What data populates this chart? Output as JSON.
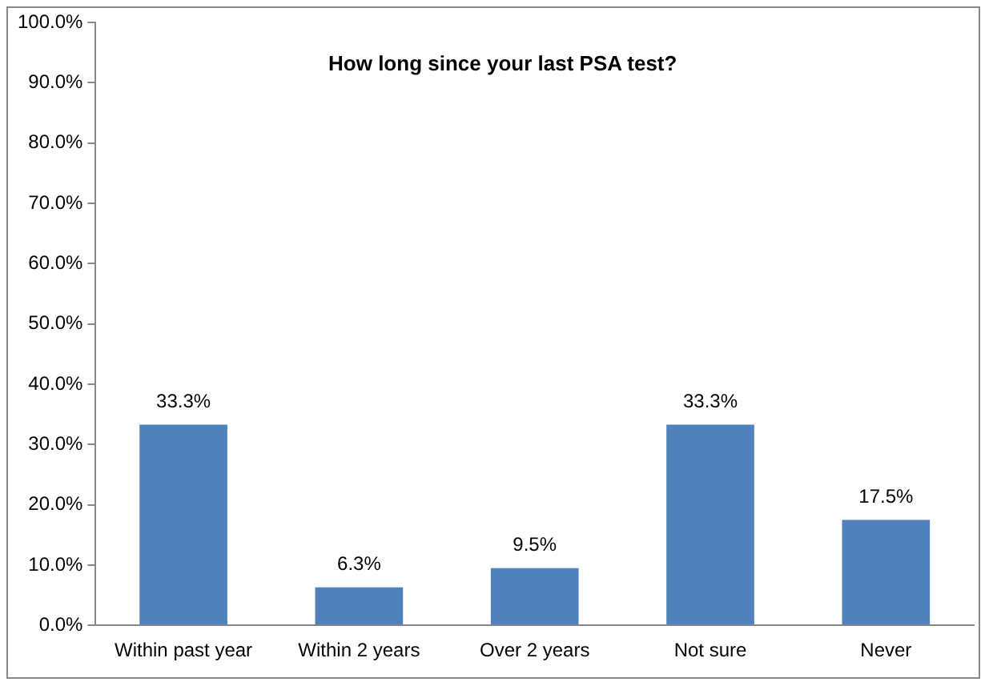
{
  "chart_data": {
    "type": "bar",
    "title": "How long since your last PSA test?",
    "categories": [
      "Within past year",
      "Within 2 years",
      "Over 2 years",
      "Not sure",
      "Never"
    ],
    "values": [
      33.3,
      6.3,
      9.5,
      33.3,
      17.5
    ],
    "value_labels": [
      "33.3%",
      "6.3%",
      "9.5%",
      "33.3%",
      "17.5%"
    ],
    "color": "#4f81bd",
    "ylim": [
      0,
      100
    ],
    "yticks": [
      {
        "value": 0,
        "label": "0.0%"
      },
      {
        "value": 10,
        "label": "10.0%"
      },
      {
        "value": 20,
        "label": "20.0%"
      },
      {
        "value": 30,
        "label": "30.0%"
      },
      {
        "value": 40,
        "label": "40.0%"
      },
      {
        "value": 50,
        "label": "50.0%"
      },
      {
        "value": 60,
        "label": "60.0%"
      },
      {
        "value": 70,
        "label": "70.0%"
      },
      {
        "value": 80,
        "label": "80.0%"
      },
      {
        "value": 90,
        "label": "90.0%"
      },
      {
        "value": 100,
        "label": "100.0%"
      }
    ],
    "grid": false,
    "legend": false
  }
}
